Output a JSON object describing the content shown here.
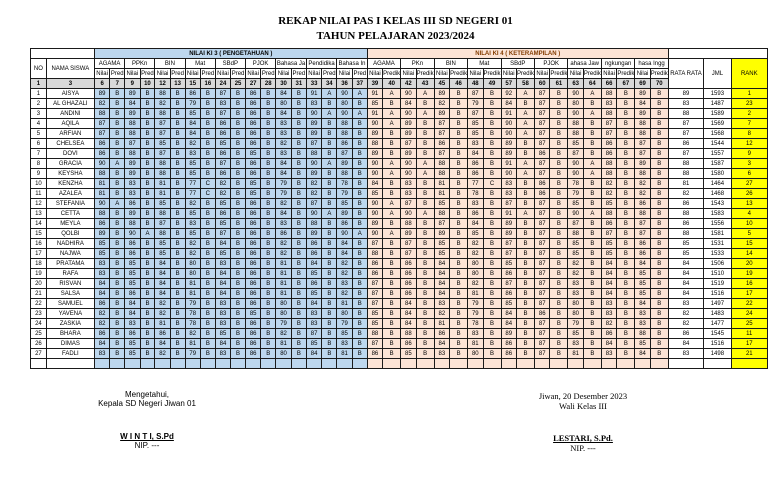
{
  "title": {
    "line1": "REKAP NILAI PAS I  KELAS III SD NEGERI 01",
    "line2": "TAHUN PELAJARAN 2023/2024"
  },
  "colors": {
    "ki3_fill": "#bdd7ee",
    "ki4_fill": "#fce4d6",
    "rank_fill": "#ffff00",
    "number_row_fill": "#d9d9d9",
    "ki4_text": "#833c00"
  },
  "table": {
    "headers": {
      "no": "NO",
      "nama": "NAMA SISWA",
      "ki3_band": "NILAI KI 3 ( PENGETAHUAN )",
      "ki4_band": "NILAI KI 4 ( KETERAMPILAN )",
      "subjects_ki3": [
        "AGAMA",
        "PPKn",
        "BIN",
        "Mat",
        "SBdP",
        "PJOK",
        "Bahasa Ja",
        "Pendidika",
        "Bahasa In"
      ],
      "subjects_ki4": [
        "AGAMA",
        "PKn",
        "BIN",
        "Mat",
        "SBdP",
        "PJOK",
        "ahasa Jaw",
        "ngkungan",
        "hasa Ingg"
      ],
      "nilai_label": "Nilai",
      "pred_label_ki3": "Pred",
      "pred_label_ki4": "Predik",
      "rata": "RATA RATA",
      "jml": "JML",
      "rank": "RANK",
      "col_number_no": "1",
      "col_number_nama": "3",
      "col_numbers_ki3": [
        "6",
        "7",
        "9",
        "10",
        "12",
        "13",
        "15",
        "16",
        "24",
        "25",
        "27",
        "28",
        "30",
        "31",
        "33",
        "34",
        "36",
        "37"
      ],
      "col_numbers_ki4": [
        "39",
        "40",
        "42",
        "43",
        "45",
        "46",
        "48",
        "49",
        "57",
        "58",
        "60",
        "61",
        "63",
        "64",
        "66",
        "67",
        "69",
        "70"
      ]
    },
    "pred_rule": {
      "A_min": 90,
      "B_min": 78,
      "C_below": 78
    },
    "students": [
      {
        "no": 1,
        "name": "AISYA",
        "ki3": [
          89,
          89,
          88,
          86,
          87,
          86,
          84,
          91,
          90
        ],
        "ki4": [
          91,
          90,
          89,
          87,
          92,
          87,
          90,
          88,
          89
        ],
        "rata": 89,
        "jml": 1593,
        "rank": 1
      },
      {
        "no": 2,
        "name": "AL GHAZALI",
        "ki3": [
          82,
          84,
          82,
          79,
          83,
          86,
          80,
          83,
          80
        ],
        "ki4": [
          85,
          84,
          82,
          79,
          84,
          87,
          80,
          83,
          84
        ],
        "rata": 83,
        "jml": 1487,
        "rank": 23
      },
      {
        "no": 3,
        "name": "ANDINI",
        "ki3": [
          88,
          89,
          88,
          85,
          87,
          86,
          84,
          90,
          90
        ],
        "ki4": [
          91,
          90,
          89,
          87,
          91,
          87,
          90,
          88,
          89
        ],
        "rata": 88,
        "jml": 1589,
        "rank": 2
      },
      {
        "no": 4,
        "name": "AQILA",
        "ki3": [
          87,
          88,
          87,
          84,
          86,
          86,
          83,
          89,
          88
        ],
        "ki4": [
          90,
          89,
          87,
          85,
          90,
          87,
          88,
          87,
          88
        ],
        "rata": 87,
        "jml": 1569,
        "rank": 7
      },
      {
        "no": 5,
        "name": "ARFIAN",
        "ki3": [
          87,
          88,
          87,
          84,
          86,
          86,
          83,
          89,
          88
        ],
        "ki4": [
          89,
          89,
          87,
          85,
          90,
          87,
          88,
          87,
          88
        ],
        "rata": 87,
        "jml": 1568,
        "rank": 8
      },
      {
        "no": 6,
        "name": "CHELSEA",
        "ki3": [
          86,
          87,
          85,
          82,
          85,
          86,
          82,
          87,
          86
        ],
        "ki4": [
          88,
          87,
          86,
          83,
          89,
          87,
          85,
          86,
          87
        ],
        "rata": 86,
        "jml": 1544,
        "rank": 12
      },
      {
        "no": 7,
        "name": "DOVI",
        "ki3": [
          86,
          88,
          87,
          83,
          86,
          85,
          83,
          88,
          87
        ],
        "ki4": [
          89,
          89,
          87,
          84,
          89,
          86,
          87,
          86,
          87
        ],
        "rata": 87,
        "jml": 1557,
        "rank": 9
      },
      {
        "no": 8,
        "name": "GRACIA",
        "ki3": [
          90,
          89,
          88,
          85,
          87,
          86,
          84,
          90,
          89
        ],
        "ki4": [
          90,
          90,
          88,
          86,
          91,
          87,
          90,
          88,
          89
        ],
        "rata": 88,
        "jml": 1587,
        "rank": 3
      },
      {
        "no": 9,
        "name": "KEYSHA",
        "ki3": [
          88,
          89,
          88,
          85,
          86,
          86,
          84,
          89,
          88
        ],
        "ki4": [
          90,
          90,
          88,
          86,
          90,
          87,
          90,
          88,
          88
        ],
        "rata": 88,
        "jml": 1580,
        "rank": 6
      },
      {
        "no": 10,
        "name": "KENZHA",
        "ki3": [
          81,
          83,
          81,
          77,
          82,
          85,
          79,
          82,
          78
        ],
        "ki4": [
          84,
          83,
          81,
          77,
          83,
          86,
          78,
          82,
          82
        ],
        "rata": 81,
        "jml": 1464,
        "rank": 27
      },
      {
        "no": 11,
        "name": "AZALEA",
        "ki3": [
          81,
          83,
          81,
          77,
          82,
          85,
          79,
          82,
          79
        ],
        "ki4": [
          85,
          83,
          81,
          78,
          83,
          86,
          79,
          82,
          82
        ],
        "rata": 82,
        "jml": 1468,
        "rank": 26
      },
      {
        "no": 12,
        "name": "STEFANIA",
        "ki3": [
          90,
          86,
          85,
          82,
          85,
          86,
          82,
          87,
          85
        ],
        "ki4": [
          90,
          87,
          85,
          83,
          87,
          87,
          85,
          85,
          86
        ],
        "rata": 86,
        "jml": 1543,
        "rank": 13
      },
      {
        "no": 13,
        "name": "CETTA",
        "ki3": [
          88,
          89,
          88,
          85,
          86,
          86,
          84,
          90,
          89
        ],
        "ki4": [
          90,
          90,
          88,
          86,
          91,
          87,
          90,
          88,
          88
        ],
        "rata": 88,
        "jml": 1583,
        "rank": 4
      },
      {
        "no": 14,
        "name": "MEYLA",
        "ki3": [
          86,
          88,
          87,
          83,
          85,
          86,
          83,
          88,
          86
        ],
        "ki4": [
          89,
          88,
          87,
          84,
          89,
          87,
          87,
          86,
          87
        ],
        "rata": 86,
        "jml": 1556,
        "rank": 10
      },
      {
        "no": 15,
        "name": "QOLBI",
        "ki3": [
          89,
          90,
          88,
          85,
          87,
          86,
          86,
          89,
          90
        ],
        "ki4": [
          90,
          89,
          89,
          85,
          89,
          87,
          88,
          87,
          87
        ],
        "rata": 88,
        "jml": 1581,
        "rank": 5
      },
      {
        "no": 16,
        "name": "NADHIRA",
        "ki3": [
          85,
          86,
          85,
          82,
          84,
          86,
          82,
          86,
          84
        ],
        "ki4": [
          87,
          87,
          85,
          82,
          87,
          87,
          85,
          85,
          86
        ],
        "rata": 85,
        "jml": 1531,
        "rank": 15
      },
      {
        "no": 17,
        "name": "NAJWA",
        "ki3": [
          85,
          86,
          85,
          82,
          85,
          86,
          82,
          86,
          84
        ],
        "ki4": [
          88,
          87,
          85,
          82,
          87,
          87,
          85,
          85,
          86
        ],
        "rata": 85,
        "jml": 1533,
        "rank": 14
      },
      {
        "no": 18,
        "name": "PRATAMA",
        "ki3": [
          83,
          85,
          84,
          80,
          83,
          86,
          81,
          84,
          82
        ],
        "ki4": [
          86,
          86,
          84,
          80,
          85,
          87,
          82,
          84,
          84
        ],
        "rata": 84,
        "jml": 1506,
        "rank": 20
      },
      {
        "no": 19,
        "name": "RAFA",
        "ki3": [
          83,
          85,
          84,
          80,
          84,
          86,
          81,
          85,
          82
        ],
        "ki4": [
          86,
          86,
          84,
          80,
          86,
          87,
          82,
          84,
          85
        ],
        "rata": 84,
        "jml": 1510,
        "rank": 19
      },
      {
        "no": 20,
        "name": "RISVAN",
        "ki3": [
          84,
          85,
          84,
          81,
          84,
          86,
          81,
          86,
          83
        ],
        "ki4": [
          87,
          86,
          84,
          82,
          87,
          87,
          83,
          84,
          85
        ],
        "rata": 84,
        "jml": 1519,
        "rank": 16
      },
      {
        "no": 21,
        "name": "SALSA",
        "ki3": [
          84,
          86,
          84,
          81,
          84,
          86,
          81,
          85,
          82
        ],
        "ki4": [
          87,
          86,
          84,
          81,
          86,
          87,
          83,
          84,
          85
        ],
        "rata": 84,
        "jml": 1516,
        "rank": 17
      },
      {
        "no": 22,
        "name": "SAMUEL",
        "ki3": [
          86,
          84,
          82,
          79,
          83,
          86,
          80,
          84,
          81
        ],
        "ki4": [
          87,
          84,
          83,
          79,
          85,
          87,
          80,
          83,
          84
        ],
        "rata": 83,
        "jml": 1497,
        "rank": 22
      },
      {
        "no": 23,
        "name": "YAVENA",
        "ki3": [
          82,
          84,
          82,
          78,
          83,
          85,
          80,
          83,
          80
        ],
        "ki4": [
          85,
          84,
          82,
          79,
          84,
          86,
          80,
          83,
          83
        ],
        "rata": 82,
        "jml": 1483,
        "rank": 24
      },
      {
        "no": 24,
        "name": "ZASKIA",
        "ki3": [
          82,
          83,
          81,
          78,
          83,
          86,
          79,
          83,
          79
        ],
        "ki4": [
          85,
          84,
          81,
          78,
          84,
          87,
          79,
          82,
          83
        ],
        "rata": 82,
        "jml": 1477,
        "rank": 25
      },
      {
        "no": 25,
        "name": "BHARA",
        "ki3": [
          86,
          86,
          86,
          82,
          85,
          86,
          82,
          87,
          85
        ],
        "ki4": [
          88,
          88,
          86,
          83,
          89,
          87,
          85,
          86,
          88
        ],
        "rata": 86,
        "jml": 1545,
        "rank": 11
      },
      {
        "no": 26,
        "name": "DIMAS",
        "ki3": [
          84,
          85,
          84,
          81,
          84,
          86,
          81,
          85,
          83
        ],
        "ki4": [
          87,
          86,
          84,
          81,
          86,
          87,
          83,
          84,
          85
        ],
        "rata": 84,
        "jml": 1516,
        "rank": 17
      },
      {
        "no": 27,
        "name": "FADLI",
        "ki3": [
          83,
          85,
          82,
          79,
          83,
          86,
          80,
          84,
          81
        ],
        "ki4": [
          86,
          85,
          83,
          80,
          86,
          87,
          81,
          83,
          84
        ],
        "rata": 83,
        "jml": 1498,
        "rank": 21
      }
    ]
  },
  "footer": {
    "left_line1": "Mengetahui,",
    "left_line2": "Kepala SD Negeri Jiwan 01",
    "left_name": "W I N T I, S.Pd",
    "left_nip": "NIP. ---",
    "right_line1": "Jiwan, 20 Desember 2023",
    "right_line2": "Wali Kelas III",
    "right_name": "LESTARI, S.Pd.",
    "right_nip": "NIP. ---"
  }
}
